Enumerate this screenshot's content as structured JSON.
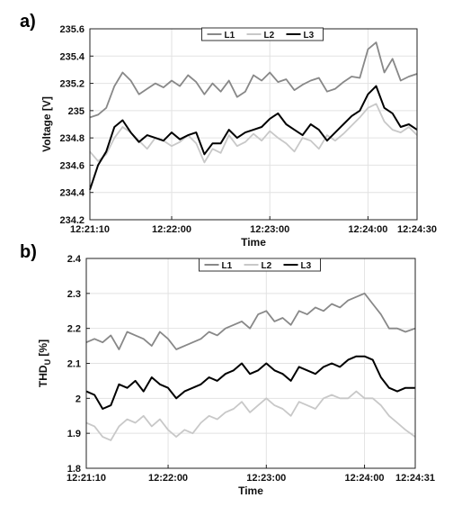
{
  "chart_data": [
    {
      "panel_label": "a)",
      "type": "line",
      "xlabel": "Time",
      "ylabel": "Voltage [V]",
      "ylim": [
        234.2,
        235.6
      ],
      "yticks": [
        "234.2",
        "234.4",
        "234.6",
        "234.8",
        "235",
        "235.2",
        "235.4",
        "235.6"
      ],
      "xticks": [
        {
          "t": 0,
          "label": "12:21:10"
        },
        {
          "t": 50,
          "label": "12:22:00"
        },
        {
          "t": 110,
          "label": "12:23:00"
        },
        {
          "t": 170,
          "label": "12:24:00"
        },
        {
          "t": 200,
          "label": "12:24:30"
        }
      ],
      "xrange_seconds": [
        0,
        200
      ],
      "grid": true,
      "legend": "top-center",
      "series": [
        {
          "name": "L1",
          "color": "#888888",
          "x": [
            0,
            5,
            10,
            15,
            20,
            25,
            30,
            35,
            40,
            45,
            50,
            55,
            60,
            65,
            70,
            75,
            80,
            85,
            90,
            95,
            100,
            105,
            110,
            115,
            120,
            125,
            130,
            135,
            140,
            145,
            150,
            155,
            160,
            165,
            170,
            175,
            180,
            185,
            190,
            195,
            200
          ],
          "y": [
            234.95,
            234.97,
            235.02,
            235.18,
            235.28,
            235.22,
            235.12,
            235.16,
            235.2,
            235.17,
            235.22,
            235.18,
            235.26,
            235.21,
            235.12,
            235.2,
            235.14,
            235.22,
            235.1,
            235.14,
            235.26,
            235.22,
            235.28,
            235.21,
            235.23,
            235.15,
            235.19,
            235.22,
            235.24,
            235.14,
            235.16,
            235.21,
            235.25,
            235.24,
            235.45,
            235.5,
            235.28,
            235.38,
            235.22,
            235.25,
            235.27
          ]
        },
        {
          "name": "L2",
          "color": "#c8c8c8",
          "x": [
            0,
            5,
            10,
            15,
            20,
            25,
            30,
            35,
            40,
            45,
            50,
            55,
            60,
            65,
            70,
            75,
            80,
            85,
            90,
            95,
            100,
            105,
            110,
            115,
            120,
            125,
            130,
            135,
            140,
            145,
            150,
            155,
            160,
            165,
            170,
            175,
            180,
            185,
            190,
            195,
            200
          ],
          "y": [
            234.7,
            234.63,
            234.68,
            234.8,
            234.88,
            234.84,
            234.78,
            234.72,
            234.8,
            234.78,
            234.74,
            234.77,
            234.82,
            234.76,
            234.62,
            234.72,
            234.69,
            234.82,
            234.74,
            234.77,
            234.83,
            234.78,
            234.85,
            234.8,
            234.76,
            234.7,
            234.8,
            234.78,
            234.72,
            234.82,
            234.78,
            234.83,
            234.89,
            234.95,
            235.02,
            235.05,
            234.92,
            234.86,
            234.84,
            234.88,
            234.82
          ]
        },
        {
          "name": "L3",
          "color": "#000000",
          "x": [
            0,
            5,
            10,
            15,
            20,
            25,
            30,
            35,
            40,
            45,
            50,
            55,
            60,
            65,
            70,
            75,
            80,
            85,
            90,
            95,
            100,
            105,
            110,
            115,
            120,
            125,
            130,
            135,
            140,
            145,
            150,
            155,
            160,
            165,
            170,
            175,
            180,
            185,
            190,
            195,
            200
          ],
          "y": [
            234.42,
            234.6,
            234.7,
            234.88,
            234.93,
            234.84,
            234.77,
            234.82,
            234.8,
            234.78,
            234.84,
            234.79,
            234.82,
            234.84,
            234.68,
            234.76,
            234.76,
            234.86,
            234.8,
            234.84,
            234.86,
            234.88,
            234.94,
            234.98,
            234.9,
            234.86,
            234.82,
            234.9,
            234.86,
            234.78,
            234.84,
            234.9,
            234.96,
            235.0,
            235.12,
            235.18,
            235.02,
            234.98,
            234.88,
            234.9,
            234.86
          ]
        }
      ]
    },
    {
      "panel_label": "b)",
      "type": "line",
      "xlabel": "Time",
      "ylabel": "THD_U [%]",
      "ylim": [
        1.8,
        2.4
      ],
      "yticks": [
        "1.8",
        "1.9",
        "2",
        "2.1",
        "2.2",
        "2.3",
        "2.4"
      ],
      "xticks": [
        {
          "t": 0,
          "label": "12:21:10"
        },
        {
          "t": 50,
          "label": "12:22:00"
        },
        {
          "t": 110,
          "label": "12:23:00"
        },
        {
          "t": 170,
          "label": "12:24:00"
        },
        {
          "t": 201,
          "label": "12:24:31"
        }
      ],
      "xrange_seconds": [
        0,
        201
      ],
      "grid": true,
      "legend": "top-center",
      "series": [
        {
          "name": "L1",
          "color": "#888888",
          "x": [
            0,
            5,
            10,
            15,
            20,
            25,
            30,
            35,
            40,
            45,
            50,
            55,
            60,
            65,
            70,
            75,
            80,
            85,
            90,
            95,
            100,
            105,
            110,
            115,
            120,
            125,
            130,
            135,
            140,
            145,
            150,
            155,
            160,
            165,
            170,
            175,
            180,
            185,
            190,
            195,
            201
          ],
          "y": [
            2.16,
            2.17,
            2.16,
            2.18,
            2.14,
            2.19,
            2.18,
            2.17,
            2.15,
            2.19,
            2.17,
            2.14,
            2.15,
            2.16,
            2.17,
            2.19,
            2.18,
            2.2,
            2.21,
            2.22,
            2.2,
            2.24,
            2.25,
            2.22,
            2.23,
            2.21,
            2.25,
            2.24,
            2.26,
            2.25,
            2.27,
            2.26,
            2.28,
            2.29,
            2.3,
            2.27,
            2.24,
            2.2,
            2.2,
            2.19,
            2.2
          ]
        },
        {
          "name": "L2",
          "color": "#c8c8c8",
          "x": [
            0,
            5,
            10,
            15,
            20,
            25,
            30,
            35,
            40,
            45,
            50,
            55,
            60,
            65,
            70,
            75,
            80,
            85,
            90,
            95,
            100,
            105,
            110,
            115,
            120,
            125,
            130,
            135,
            140,
            145,
            150,
            155,
            160,
            165,
            170,
            175,
            180,
            185,
            190,
            195,
            201
          ],
          "y": [
            1.93,
            1.92,
            1.89,
            1.88,
            1.92,
            1.94,
            1.93,
            1.95,
            1.92,
            1.94,
            1.91,
            1.89,
            1.91,
            1.9,
            1.93,
            1.95,
            1.94,
            1.96,
            1.97,
            1.99,
            1.96,
            1.98,
            2.0,
            1.98,
            1.97,
            1.95,
            1.99,
            1.98,
            1.97,
            2.0,
            2.01,
            2.0,
            2.0,
            2.02,
            2.0,
            2.0,
            1.98,
            1.95,
            1.93,
            1.91,
            1.89
          ]
        },
        {
          "name": "L3",
          "color": "#000000",
          "x": [
            0,
            5,
            10,
            15,
            20,
            25,
            30,
            35,
            40,
            45,
            50,
            55,
            60,
            65,
            70,
            75,
            80,
            85,
            90,
            95,
            100,
            105,
            110,
            115,
            120,
            125,
            130,
            135,
            140,
            145,
            150,
            155,
            160,
            165,
            170,
            175,
            180,
            185,
            190,
            195,
            201
          ],
          "y": [
            2.02,
            2.01,
            1.97,
            1.98,
            2.04,
            2.03,
            2.05,
            2.02,
            2.06,
            2.04,
            2.03,
            2.0,
            2.02,
            2.03,
            2.04,
            2.06,
            2.05,
            2.07,
            2.08,
            2.1,
            2.07,
            2.08,
            2.1,
            2.08,
            2.07,
            2.05,
            2.09,
            2.08,
            2.07,
            2.09,
            2.1,
            2.09,
            2.11,
            2.12,
            2.12,
            2.11,
            2.06,
            2.03,
            2.02,
            2.03,
            2.03
          ]
        }
      ]
    }
  ]
}
